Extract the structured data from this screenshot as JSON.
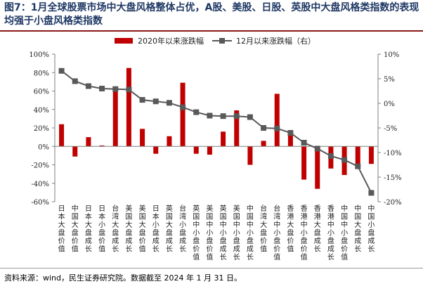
{
  "title": "图7：1月全球股票市场中大盘风格整体占优，A股、美股、日股、英股中大盘风格类指数的表现均强于小盘风格类指数",
  "source": "资料来源：wind，民生证券研究院。数据截至 2024 年 1 月 31 日。",
  "colors": {
    "bar": "#c00000",
    "line": "#595959",
    "axis": "#7f7f7f",
    "title": "#1f3864"
  },
  "chart_data": {
    "type": "bar+line",
    "title": "",
    "categories": [
      "日本大盘价值",
      "中国大盘价值",
      "日本大盘成长",
      "日本小盘价值",
      "台湾大盘成长",
      "美国大盘成长",
      "美国大盘价值",
      "日本小盘成长",
      "英国大盘成长",
      "台湾小盘成长",
      "英国中小盘价值",
      "美国中小盘价值",
      "英国中小盘成长",
      "美国中小盘成长",
      "中国中小盘成长",
      "台湾大盘价值",
      "台湾中小盘价值",
      "香港大盘价值",
      "香港中小盘价值",
      "香港大盘成长",
      "香港中小盘成长",
      "中国中小盘价值",
      "中国大盘成长",
      "中国小盘成长"
    ],
    "series": [
      {
        "name": "2020年以来涨跌幅",
        "type": "bar",
        "axis": "left",
        "values": [
          24,
          -11,
          10,
          1,
          62,
          85,
          19,
          -8,
          11,
          69,
          -8,
          -9,
          16,
          39,
          -20,
          6,
          57,
          13,
          -36,
          -46,
          -24,
          -31,
          -24,
          -19
        ]
      },
      {
        "name": "12月以来涨跌幅（右）",
        "type": "line",
        "axis": "right",
        "values": [
          6.6,
          4.5,
          3.5,
          3.0,
          2.9,
          2.8,
          0.7,
          0.4,
          0.1,
          -0.8,
          -1.8,
          -2.5,
          -2.6,
          -2.6,
          -2.8,
          -5.0,
          -5.1,
          -6.0,
          -8.0,
          -9.2,
          -10.7,
          -11.5,
          -12.8,
          -18.2
        ]
      }
    ],
    "y_left": {
      "ylim": [
        -60,
        100
      ],
      "ticks": [
        -60,
        -40,
        -20,
        0,
        20,
        40,
        60,
        80,
        100
      ],
      "format": "percent"
    },
    "y_right": {
      "ylim": [
        -20,
        10
      ],
      "ticks": [
        -20,
        -15,
        -10,
        -5,
        0,
        5,
        10
      ],
      "format": "percent"
    },
    "legend": {
      "placement": "top-center"
    },
    "grid": false
  }
}
